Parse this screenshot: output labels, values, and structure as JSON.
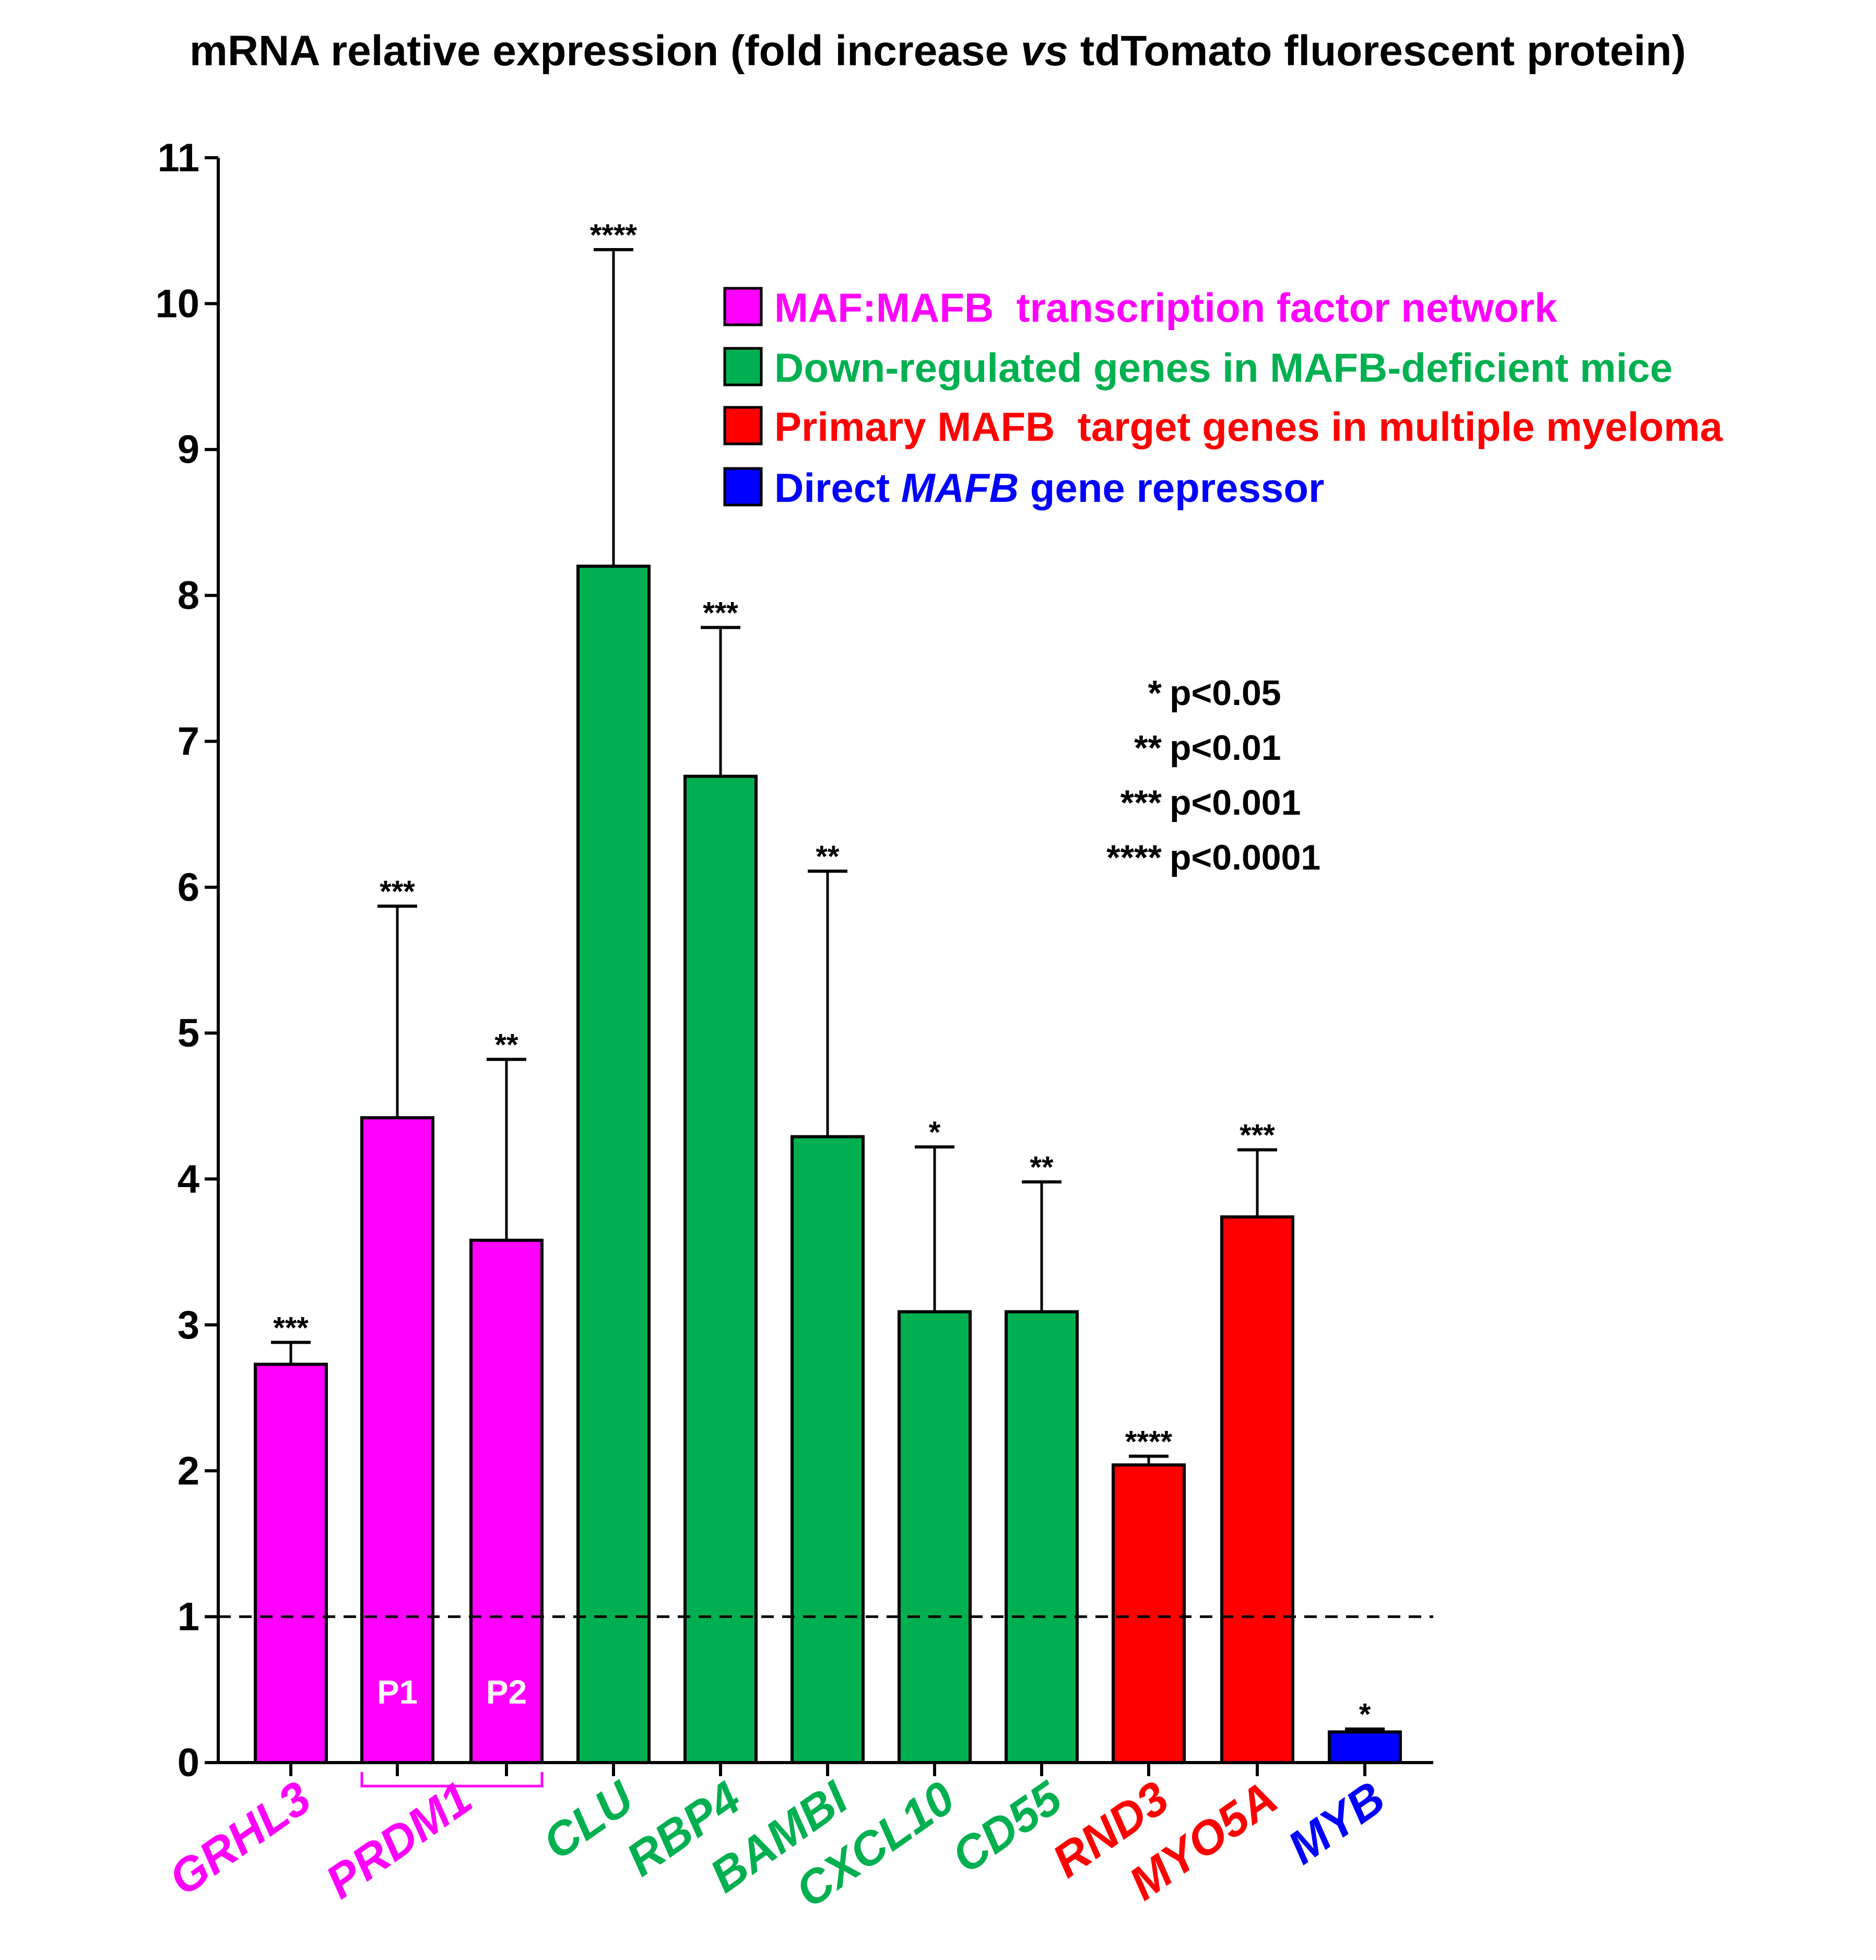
{
  "chart_data": {
    "type": "bar",
    "title": "mRNA relative expression (fold increase vs tdTomato fluorescent protein)",
    "title_parts": {
      "before": "mRNA relative expression (fold increase ",
      "italic": "vs",
      "after": " tdTomato fluorescent protein)"
    },
    "xlabel": "",
    "ylabel": "",
    "ylim": [
      0,
      11
    ],
    "yticks": [
      "0",
      "1",
      "2",
      "3",
      "4",
      "5",
      "6",
      "7",
      "8",
      "9",
      "10",
      "11"
    ],
    "reference_line": 1,
    "colors": {
      "magenta": "#ff00ff",
      "green": "#00b050",
      "red": "#ff0000",
      "blue": "#0000ff"
    },
    "bars": [
      {
        "label": "GRHL3",
        "value": 2.73,
        "error": 0.15,
        "sig": "***",
        "group": "magenta"
      },
      {
        "label": "P1",
        "value": 4.42,
        "error": 1.45,
        "sig": "***",
        "group": "magenta"
      },
      {
        "label": "P2",
        "value": 3.58,
        "error": 1.24,
        "sig": "**",
        "group": "magenta"
      },
      {
        "label": "CLU",
        "value": 8.2,
        "error": 2.17,
        "sig": "****",
        "group": "green"
      },
      {
        "label": "RBP4",
        "value": 6.76,
        "error": 1.02,
        "sig": "***",
        "group": "green"
      },
      {
        "label": "BAMBI",
        "value": 4.29,
        "error": 1.82,
        "sig": "**",
        "group": "green"
      },
      {
        "label": "CXCL10",
        "value": 3.09,
        "error": 1.13,
        "sig": "*",
        "group": "green"
      },
      {
        "label": "CD55",
        "value": 3.09,
        "error": 0.89,
        "sig": "**",
        "group": "green"
      },
      {
        "label": "RND3",
        "value": 2.04,
        "error": 0.06,
        "sig": "****",
        "group": "red"
      },
      {
        "label": "MYO5A",
        "value": 3.74,
        "error": 0.46,
        "sig": "***",
        "group": "red"
      },
      {
        "label": "MYB",
        "value": 0.21,
        "error": 0.02,
        "sig": "*",
        "group": "blue"
      }
    ],
    "x_labels": [
      {
        "text": "GRHL3",
        "group": "magenta",
        "bar": 0
      },
      {
        "text": "PRDM1",
        "group": "magenta",
        "bars": [
          1,
          2
        ]
      },
      {
        "text": "CLU",
        "group": "green",
        "bar": 3
      },
      {
        "text": "RBP4",
        "group": "green",
        "bar": 4
      },
      {
        "text": "BAMBI",
        "group": "green",
        "bar": 5
      },
      {
        "text": "CXCL10",
        "group": "green",
        "bar": 6
      },
      {
        "text": "CD55",
        "group": "green",
        "bar": 7
      },
      {
        "text": "RND3",
        "group": "red",
        "bar": 8
      },
      {
        "text": "MYO5A",
        "group": "red",
        "bar": 9
      },
      {
        "text": "MYB",
        "group": "blue",
        "bar": 10
      }
    ],
    "legend": [
      {
        "text": "MAF:MAFB  transcription factor network",
        "group": "magenta"
      },
      {
        "text": "Down-regulated genes in MAFB-deficient mice",
        "group": "green"
      },
      {
        "text": "Primary MAFB  target genes in multiple myeloma",
        "group": "red"
      },
      {
        "pre": "Direct ",
        "italic": "MAFB",
        "post": " gene repressor",
        "group": "blue"
      }
    ],
    "significance_key": [
      {
        "stars": "*",
        "text": "p<0.05"
      },
      {
        "stars": "**",
        "text": "p<0.01"
      },
      {
        "stars": "***",
        "text": "p<0.001"
      },
      {
        "stars": "****",
        "text": "p<0.0001"
      }
    ]
  }
}
